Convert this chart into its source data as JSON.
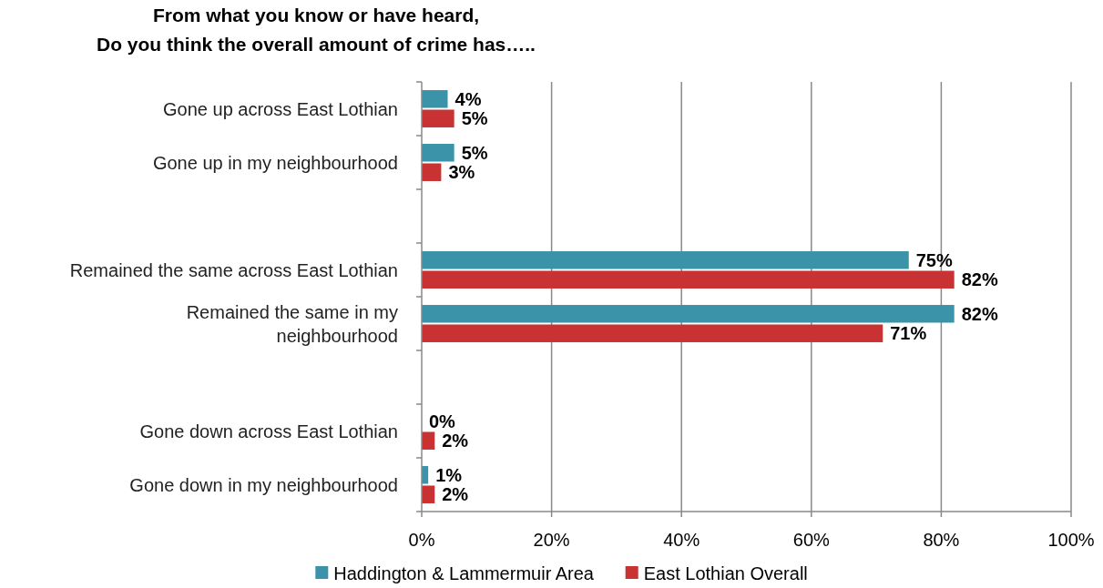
{
  "chart_data": {
    "type": "bar",
    "orientation": "horizontal",
    "title": "From what you know or have heard,\nDo you think the overall amount of crime has…..",
    "categories": [
      "Gone up across East Lothian",
      "Gone up in my neighbourhood",
      null,
      "Remained the same across East Lothian",
      "Remained the same in my neighbourhood",
      null,
      "Gone down across East Lothian",
      "Gone down in my neighbourhood"
    ],
    "series": [
      {
        "name": "Haddington & Lammermuir Area",
        "color": "#3a93a8",
        "values": [
          4,
          5,
          null,
          75,
          82,
          null,
          0,
          1
        ],
        "value_labels": [
          "4%",
          "5%",
          null,
          "75%",
          "82%",
          null,
          "0%",
          "1%"
        ]
      },
      {
        "name": "East Lothian Overall",
        "color": "#c83232",
        "values": [
          5,
          3,
          null,
          82,
          71,
          null,
          2,
          2
        ],
        "value_labels": [
          "5%",
          "3%",
          null,
          "82%",
          "71%",
          null,
          "2%",
          "2%"
        ]
      }
    ],
    "xlim": [
      0,
      100
    ],
    "xticks": [
      {
        "value": 0,
        "label": "0%"
      },
      {
        "value": 20,
        "label": "20%"
      },
      {
        "value": 40,
        "label": "40%"
      },
      {
        "value": 60,
        "label": "60%"
      },
      {
        "value": 80,
        "label": "80%"
      },
      {
        "value": 100,
        "label": "100%"
      }
    ],
    "grid": "x",
    "legend": "bottom"
  }
}
